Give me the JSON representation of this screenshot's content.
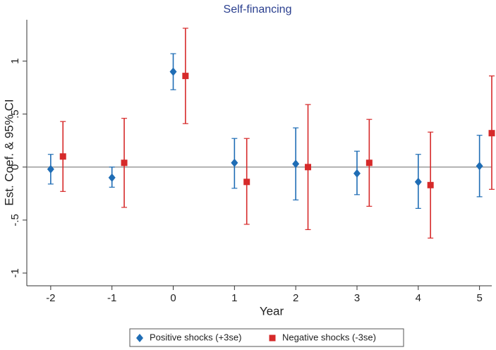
{
  "chart_data": {
    "type": "errorbar",
    "title": "Self-financing",
    "x_label": "Year",
    "y_label": "Est. Coef. & 95% CI",
    "xlim": [
      -2.39,
      5.2
    ],
    "xticks": [
      -2,
      -1,
      0,
      1,
      2,
      3,
      4,
      5
    ],
    "ylim": [
      -1.12,
      1.39
    ],
    "yticks": [
      1,
      {
        "value": 0.5,
        "label": ".5"
      },
      0,
      {
        "value": -0.5,
        "label": "-.5"
      },
      -1
    ],
    "reference_line": 0,
    "series": [
      {
        "name": "Positive shocks (+3se)",
        "color": "#1f6db5",
        "marker": "diamond",
        "x": [
          -2,
          -1,
          0,
          1,
          2,
          3,
          4,
          5
        ],
        "values": [
          -0.02,
          -0.1,
          0.9,
          0.04,
          0.03,
          -0.06,
          -0.14,
          0.01
        ],
        "lower": [
          -0.16,
          -0.19,
          0.73,
          -0.2,
          -0.31,
          -0.26,
          -0.39,
          -0.28
        ],
        "upper": [
          0.12,
          0.0,
          1.07,
          0.27,
          0.37,
          0.15,
          0.12,
          0.3
        ]
      },
      {
        "name": "Negative shocks (-3se)",
        "color": "#d62a2a",
        "marker": "square",
        "x": [
          -1.8,
          -0.8,
          0.2,
          1.2,
          2.2,
          3.2,
          4.2,
          5.2
        ],
        "values": [
          0.1,
          0.04,
          0.86,
          -0.14,
          0.0,
          0.04,
          -0.17,
          0.32
        ],
        "lower": [
          -0.23,
          -0.38,
          0.41,
          -0.54,
          -0.59,
          -0.37,
          -0.67,
          -0.21
        ],
        "upper": [
          0.43,
          0.46,
          1.31,
          0.27,
          0.59,
          0.45,
          0.33,
          0.86
        ]
      }
    ]
  }
}
